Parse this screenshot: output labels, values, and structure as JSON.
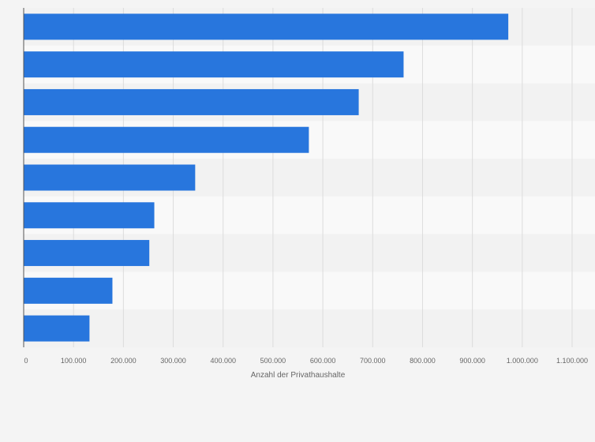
{
  "chart_data": {
    "type": "bar",
    "orientation": "horizontal",
    "title": "",
    "xlabel": "Anzahl der Privathaushalte",
    "ylabel": "",
    "categories": [
      "",
      "",
      "",
      "",
      "",
      "",
      "",
      "",
      ""
    ],
    "values": [
      972000,
      762000,
      672000,
      572000,
      344000,
      262000,
      252000,
      178000,
      132000
    ],
    "xlim": [
      0,
      1100000
    ],
    "xticks": [
      0,
      100000,
      200000,
      300000,
      400000,
      500000,
      600000,
      700000,
      800000,
      900000,
      1000000,
      1100000
    ],
    "xtick_labels": [
      "0",
      "100.000",
      "200.000",
      "300.000",
      "400.000",
      "500.000",
      "600.000",
      "700.000",
      "800.000",
      "900.000",
      "1.000.000",
      "1.100.000"
    ],
    "grid": true,
    "legend": "none",
    "colors": {
      "bar": "#2876dd",
      "band_dark": "#f2f2f2",
      "band_light": "#f9f9f9",
      "grid": "#dcdcdc",
      "axis": "#555555",
      "text": "#666666"
    }
  }
}
